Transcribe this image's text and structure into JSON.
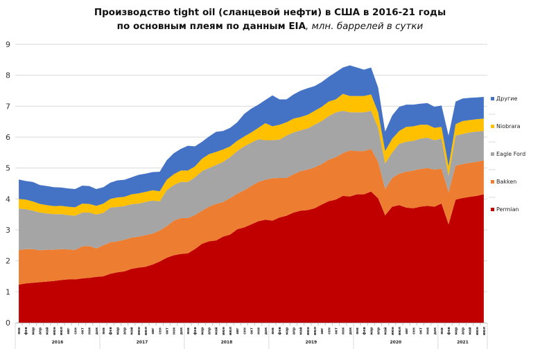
{
  "chart_data": {
    "type": "area",
    "stacked": true,
    "title": "Производство tight oil (сланцевой нефти) в США в 2016-21 годы",
    "subtitle_bold": "по основным плеям по данным EIA",
    "subtitle_italic": ", млн. баррелей в сутки",
    "xlabel": "",
    "ylabel": "",
    "ylim": [
      0,
      9
    ],
    "yticks": [
      "0",
      "1",
      "2",
      "3",
      "4",
      "5",
      "6",
      "7",
      "8",
      "9"
    ],
    "grid": true,
    "legend_position": "right",
    "month_labels": [
      "янв",
      "фев",
      "мар",
      "апр",
      "май",
      "июн",
      "июл",
      "авг",
      "сен",
      "окт",
      "ноя",
      "дек"
    ],
    "years": [
      {
        "label": "2016",
        "months": 12
      },
      {
        "label": "2017",
        "months": 12
      },
      {
        "label": "2018",
        "months": 12
      },
      {
        "label": "2019",
        "months": 12
      },
      {
        "label": "2020",
        "months": 12
      },
      {
        "label": "2021",
        "months": 7
      }
    ],
    "series": [
      {
        "name": "Permian",
        "color": "#C00000",
        "values": [
          1.23,
          1.27,
          1.29,
          1.31,
          1.33,
          1.35,
          1.38,
          1.4,
          1.4,
          1.43,
          1.45,
          1.48,
          1.5,
          1.58,
          1.63,
          1.66,
          1.74,
          1.78,
          1.81,
          1.88,
          1.98,
          2.1,
          2.18,
          2.22,
          2.24,
          2.38,
          2.55,
          2.63,
          2.66,
          2.78,
          2.85,
          3.02,
          3.08,
          3.18,
          3.28,
          3.33,
          3.3,
          3.4,
          3.46,
          3.56,
          3.62,
          3.64,
          3.7,
          3.82,
          3.93,
          3.98,
          4.1,
          4.08,
          4.15,
          4.15,
          4.24,
          4.02,
          3.47,
          3.75,
          3.8,
          3.72,
          3.7,
          3.75,
          3.78,
          3.75,
          3.85,
          3.18,
          3.98,
          4.03,
          4.07,
          4.1,
          4.15
        ]
      },
      {
        "name": "Bakken",
        "color": "#ED7D31",
        "values": [
          1.12,
          1.11,
          1.09,
          1.03,
          1.03,
          1.01,
          1.0,
          0.97,
          0.95,
          1.04,
          1.03,
          0.92,
          1.0,
          1.02,
          1.0,
          1.02,
          1.01,
          1.0,
          1.02,
          1.0,
          1.0,
          1.02,
          1.12,
          1.16,
          1.14,
          1.1,
          1.07,
          1.12,
          1.18,
          1.12,
          1.18,
          1.15,
          1.2,
          1.24,
          1.27,
          1.29,
          1.37,
          1.28,
          1.22,
          1.24,
          1.28,
          1.31,
          1.32,
          1.31,
          1.34,
          1.37,
          1.38,
          1.49,
          1.4,
          1.4,
          1.38,
          1.18,
          0.85,
          0.93,
          1.02,
          1.16,
          1.22,
          1.22,
          1.22,
          1.2,
          1.13,
          1.04,
          1.1,
          1.1,
          1.1,
          1.1,
          1.1
        ]
      },
      {
        "name": "Eagle Ford",
        "color": "#A5A5A5",
        "values": [
          1.34,
          1.29,
          1.24,
          1.22,
          1.17,
          1.15,
          1.13,
          1.11,
          1.11,
          1.09,
          1.08,
          1.1,
          1.05,
          1.12,
          1.11,
          1.09,
          1.08,
          1.07,
          1.07,
          1.07,
          0.94,
          1.16,
          1.15,
          1.17,
          1.17,
          1.22,
          1.28,
          1.25,
          1.26,
          1.3,
          1.32,
          1.38,
          1.42,
          1.4,
          1.38,
          1.28,
          1.23,
          1.24,
          1.37,
          1.35,
          1.32,
          1.33,
          1.38,
          1.39,
          1.41,
          1.45,
          1.37,
          1.23,
          1.25,
          1.25,
          1.23,
          1.1,
          0.83,
          0.82,
          0.96,
          0.97,
          0.96,
          0.98,
          0.98,
          0.95,
          0.97,
          0.53,
          0.97,
          0.97,
          0.98,
          0.98,
          0.95
        ]
      },
      {
        "name": "Niobrara",
        "color": "#FFC000",
        "values": [
          0.31,
          0.31,
          0.3,
          0.28,
          0.27,
          0.26,
          0.27,
          0.27,
          0.27,
          0.29,
          0.28,
          0.28,
          0.3,
          0.28,
          0.31,
          0.3,
          0.32,
          0.33,
          0.33,
          0.33,
          0.33,
          0.34,
          0.35,
          0.37,
          0.37,
          0.35,
          0.4,
          0.45,
          0.42,
          0.4,
          0.35,
          0.33,
          0.32,
          0.33,
          0.37,
          0.55,
          0.45,
          0.48,
          0.43,
          0.45,
          0.43,
          0.44,
          0.45,
          0.46,
          0.47,
          0.42,
          0.55,
          0.53,
          0.53,
          0.53,
          0.53,
          0.5,
          0.4,
          0.45,
          0.42,
          0.48,
          0.47,
          0.45,
          0.42,
          0.4,
          0.38,
          0.3,
          0.37,
          0.42,
          0.4,
          0.4,
          0.4
        ]
      },
      {
        "name": "Другие",
        "color": "#4472C4",
        "values": [
          0.63,
          0.6,
          0.63,
          0.61,
          0.62,
          0.61,
          0.59,
          0.59,
          0.59,
          0.58,
          0.58,
          0.54,
          0.53,
          0.53,
          0.55,
          0.55,
          0.55,
          0.6,
          0.59,
          0.59,
          0.63,
          0.63,
          0.68,
          0.7,
          0.8,
          0.65,
          0.55,
          0.57,
          0.65,
          0.6,
          0.6,
          0.6,
          0.73,
          0.77,
          0.75,
          0.75,
          1.0,
          0.82,
          0.74,
          0.78,
          0.85,
          0.86,
          0.8,
          0.8,
          0.8,
          0.88,
          0.85,
          0.99,
          0.92,
          0.85,
          0.87,
          0.8,
          0.63,
          0.75,
          0.78,
          0.72,
          0.7,
          0.68,
          0.7,
          0.68,
          0.69,
          1.0,
          0.73,
          0.73,
          0.72,
          0.7,
          0.7
        ]
      }
    ]
  }
}
